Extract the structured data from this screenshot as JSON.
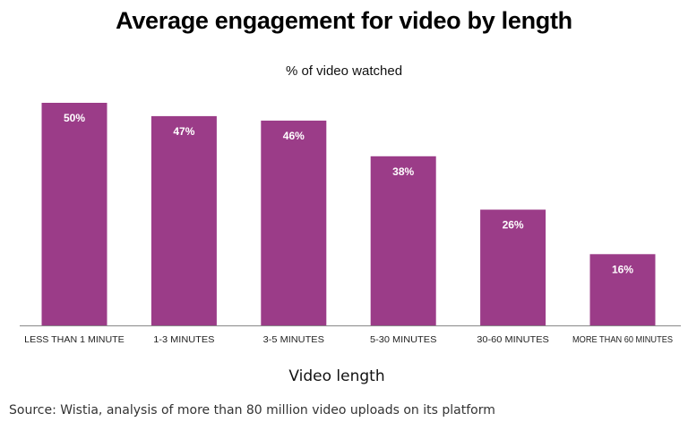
{
  "chart_data": {
    "type": "bar",
    "title": "Average engagement for video by length",
    "subtitle": "% of video watched",
    "xlabel": "Video length",
    "ylabel": "",
    "categories": [
      "LESS THAN 1 MINUTE",
      "1-3 MINUTES",
      "3-5 MINUTES",
      "5-30 MINUTES",
      "30-60 MINUTES",
      "MORE THAN 60 MINUTES"
    ],
    "values": [
      50,
      47,
      46,
      38,
      26,
      16
    ],
    "data_labels": [
      "50%",
      "47%",
      "46%",
      "38%",
      "26%",
      "16%"
    ],
    "ylim": [
      0,
      50
    ],
    "grid": false,
    "legend": "none",
    "colors": {
      "bar": "#9b3c88",
      "label": "#ffffff",
      "axis": "#888888"
    }
  },
  "source": "Source: Wistia, analysis of more than 80 million video uploads on its platform"
}
